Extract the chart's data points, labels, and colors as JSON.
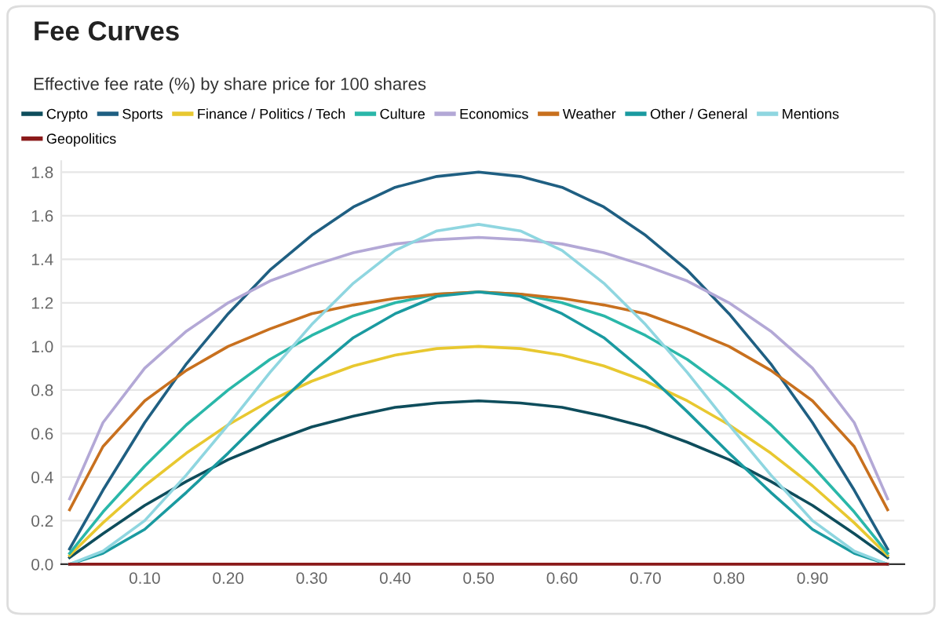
{
  "chart_data": {
    "type": "line",
    "title": "Fee Curves",
    "subtitle": "Effective fee rate (%) by share price for 100 shares",
    "x": [
      0.01,
      0.05,
      0.1,
      0.15,
      0.2,
      0.25,
      0.3,
      0.35,
      0.4,
      0.45,
      0.5,
      0.55,
      0.6,
      0.65,
      0.7,
      0.75,
      0.8,
      0.85,
      0.9,
      0.95,
      0.99
    ],
    "series": [
      {
        "name": "Crypto",
        "color": "#0e4d5c",
        "values": [
          0.03,
          0.14,
          0.27,
          0.38,
          0.48,
          0.56,
          0.63,
          0.68,
          0.72,
          0.74,
          0.75,
          0.74,
          0.72,
          0.68,
          0.63,
          0.56,
          0.48,
          0.38,
          0.27,
          0.14,
          0.03
        ]
      },
      {
        "name": "Sports",
        "color": "#1f5f82",
        "values": [
          0.07,
          0.34,
          0.65,
          0.92,
          1.15,
          1.35,
          1.51,
          1.64,
          1.73,
          1.78,
          1.8,
          1.78,
          1.73,
          1.64,
          1.51,
          1.35,
          1.15,
          0.92,
          0.65,
          0.34,
          0.07
        ]
      },
      {
        "name": "Finance / Politics / Tech",
        "color": "#e8c830",
        "values": [
          0.04,
          0.19,
          0.36,
          0.51,
          0.64,
          0.75,
          0.84,
          0.91,
          0.96,
          0.99,
          1.0,
          0.99,
          0.96,
          0.91,
          0.84,
          0.75,
          0.64,
          0.51,
          0.36,
          0.19,
          0.04
        ]
      },
      {
        "name": "Culture",
        "color": "#2ab7a9",
        "values": [
          0.05,
          0.24,
          0.45,
          0.64,
          0.8,
          0.94,
          1.05,
          1.14,
          1.2,
          1.24,
          1.25,
          1.24,
          1.2,
          1.14,
          1.05,
          0.94,
          0.8,
          0.64,
          0.45,
          0.24,
          0.05
        ]
      },
      {
        "name": "Economics",
        "color": "#b3a8d6",
        "values": [
          0.3,
          0.65,
          0.9,
          1.07,
          1.2,
          1.3,
          1.37,
          1.43,
          1.47,
          1.49,
          1.5,
          1.49,
          1.47,
          1.43,
          1.37,
          1.3,
          1.2,
          1.07,
          0.9,
          0.65,
          0.3
        ]
      },
      {
        "name": "Weather",
        "color": "#c8701e",
        "values": [
          0.25,
          0.54,
          0.75,
          0.89,
          1.0,
          1.08,
          1.15,
          1.19,
          1.22,
          1.24,
          1.25,
          1.24,
          1.22,
          1.19,
          1.15,
          1.08,
          1.0,
          0.89,
          0.75,
          0.54,
          0.25
        ]
      },
      {
        "name": "Other / General",
        "color": "#1a9aa0",
        "values": [
          0.0,
          0.05,
          0.16,
          0.33,
          0.51,
          0.7,
          0.88,
          1.04,
          1.15,
          1.23,
          1.25,
          1.23,
          1.15,
          1.04,
          0.88,
          0.7,
          0.51,
          0.33,
          0.16,
          0.05,
          0.0
        ]
      },
      {
        "name": "Mentions",
        "color": "#8fd6e0",
        "values": [
          0.0,
          0.06,
          0.2,
          0.41,
          0.64,
          0.88,
          1.1,
          1.29,
          1.44,
          1.53,
          1.56,
          1.53,
          1.44,
          1.29,
          1.1,
          0.88,
          0.64,
          0.41,
          0.2,
          0.06,
          0.0
        ]
      },
      {
        "name": "Geopolitics",
        "color": "#8b1a1a",
        "values": [
          0,
          0,
          0,
          0,
          0,
          0,
          0,
          0,
          0,
          0,
          0,
          0,
          0,
          0,
          0,
          0,
          0,
          0,
          0,
          0,
          0
        ]
      }
    ],
    "xlim": [
      0,
      1.01
    ],
    "ylim": [
      0,
      1.85
    ],
    "xticks": [
      {
        "value": 0.1,
        "label": "0.10"
      },
      {
        "value": 0.2,
        "label": "0.20"
      },
      {
        "value": 0.3,
        "label": "0.30"
      },
      {
        "value": 0.4,
        "label": "0.40"
      },
      {
        "value": 0.5,
        "label": "0.50"
      },
      {
        "value": 0.6,
        "label": "0.60"
      },
      {
        "value": 0.7,
        "label": "0.70"
      },
      {
        "value": 0.8,
        "label": "0.80"
      },
      {
        "value": 0.9,
        "label": "0.90"
      }
    ],
    "yticks": [
      {
        "value": 0,
        "label": "0.0"
      },
      {
        "value": 0.2,
        "label": "0.2"
      },
      {
        "value": 0.4,
        "label": "0.4"
      },
      {
        "value": 0.6,
        "label": "0.6"
      },
      {
        "value": 0.8,
        "label": "0.8"
      },
      {
        "value": 1.0,
        "label": "1.0"
      },
      {
        "value": 1.2,
        "label": "1.2"
      },
      {
        "value": 1.4,
        "label": "1.4"
      },
      {
        "value": 1.6,
        "label": "1.6"
      },
      {
        "value": 1.8,
        "label": "1.8"
      }
    ],
    "grid": "y",
    "legend": "top",
    "marker": "none",
    "line_style": "solid"
  }
}
